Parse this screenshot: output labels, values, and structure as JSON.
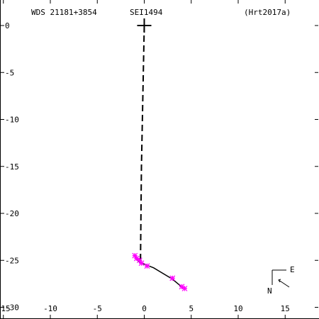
{
  "header": {
    "wds_id": "WDS 21181+3854",
    "discoverer": "SEI1494",
    "reference": "(Hrt2017a)"
  },
  "compass": {
    "east": "E",
    "north": "N"
  },
  "colors": {
    "axes": "#000000",
    "obs_bar": "#ff00ff",
    "orbit": "#000000",
    "background": "#ffffff"
  },
  "chart_data": {
    "type": "scatter",
    "title": "",
    "xlabel": "",
    "ylabel": "",
    "xlim": [
      -15,
      18
    ],
    "ylim": [
      -30,
      1.2
    ],
    "x_ticks": [
      -15,
      -10,
      -5,
      0,
      5,
      10,
      15
    ],
    "x_tick_labels": [
      "-15",
      "-10",
      "-5",
      "0",
      "5",
      "10",
      "15"
    ],
    "y_ticks": [
      0,
      -5,
      -10,
      -15,
      -20,
      -25,
      -30
    ],
    "y_tick_labels": [
      "0",
      "-5",
      "-10",
      "-15",
      "-20",
      "-25",
      "-30"
    ],
    "primary": {
      "x": 0,
      "y": 0
    },
    "connector": {
      "x": [
        0,
        -0.1,
        -0.3,
        -0.4
      ],
      "y": [
        0,
        -5,
        -15,
        -25
      ]
    },
    "orbit_path": {
      "x": [
        -1.0,
        -0.5,
        1.0,
        3.0,
        4.2
      ],
      "y": [
        -24.7,
        -25.2,
        -25.8,
        -27.0,
        -28.0
      ]
    },
    "observations": {
      "x": [
        -1.0,
        -0.8,
        -0.5,
        -0.3,
        0.3,
        3.0,
        4.0,
        4.3
      ],
      "y": [
        -24.5,
        -24.8,
        -25.0,
        -25.3,
        -25.6,
        -26.9,
        -27.8,
        -28.0
      ]
    }
  }
}
